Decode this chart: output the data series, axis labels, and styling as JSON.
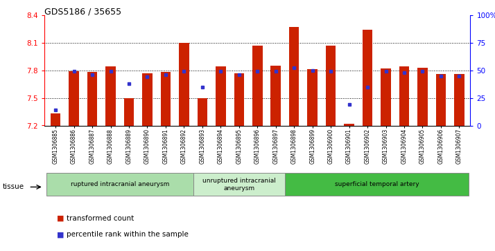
{
  "title": "GDS5186 / 35655",
  "samples": [
    "GSM1306885",
    "GSM1306886",
    "GSM1306887",
    "GSM1306888",
    "GSM1306889",
    "GSM1306890",
    "GSM1306891",
    "GSM1306892",
    "GSM1306893",
    "GSM1306894",
    "GSM1306895",
    "GSM1306896",
    "GSM1306897",
    "GSM1306898",
    "GSM1306899",
    "GSM1306900",
    "GSM1306901",
    "GSM1306902",
    "GSM1306903",
    "GSM1306904",
    "GSM1306905",
    "GSM1306906",
    "GSM1306907"
  ],
  "bar_values": [
    7.33,
    7.79,
    7.78,
    7.84,
    7.5,
    7.77,
    7.78,
    8.1,
    7.5,
    7.84,
    7.77,
    8.07,
    7.85,
    8.27,
    7.81,
    8.07,
    7.22,
    8.24,
    7.82,
    7.84,
    7.83,
    7.76,
    7.76
  ],
  "percentile_values": [
    14,
    49,
    46,
    49,
    38,
    44,
    46,
    49,
    35,
    49,
    46,
    49,
    49,
    52,
    50,
    49,
    19,
    35,
    49,
    48,
    49,
    45,
    45
  ],
  "ylim_left": [
    7.2,
    8.4
  ],
  "ylim_right": [
    0,
    100
  ],
  "bar_color": "#cc2200",
  "percentile_color": "#3333cc",
  "grid_values": [
    7.5,
    7.8,
    8.1
  ],
  "groups": [
    {
      "label": "ruptured intracranial aneurysm",
      "start": 0,
      "end": 8,
      "color": "#aaddaa"
    },
    {
      "label": "unruptured intracranial\naneurysm",
      "start": 8,
      "end": 13,
      "color": "#cceecc"
    },
    {
      "label": "superficial temporal artery",
      "start": 13,
      "end": 23,
      "color": "#44bb44"
    }
  ],
  "legend_items": [
    {
      "label": "transformed count",
      "color": "#cc2200"
    },
    {
      "label": "percentile rank within the sample",
      "color": "#3333cc"
    }
  ],
  "tissue_label": "tissue",
  "yticks_left": [
    7.2,
    7.5,
    7.8,
    8.1,
    8.4
  ],
  "right_ticks": [
    0,
    25,
    50,
    75,
    100
  ],
  "right_tick_labels": [
    "0",
    "25",
    "50",
    "75",
    "100%"
  ]
}
